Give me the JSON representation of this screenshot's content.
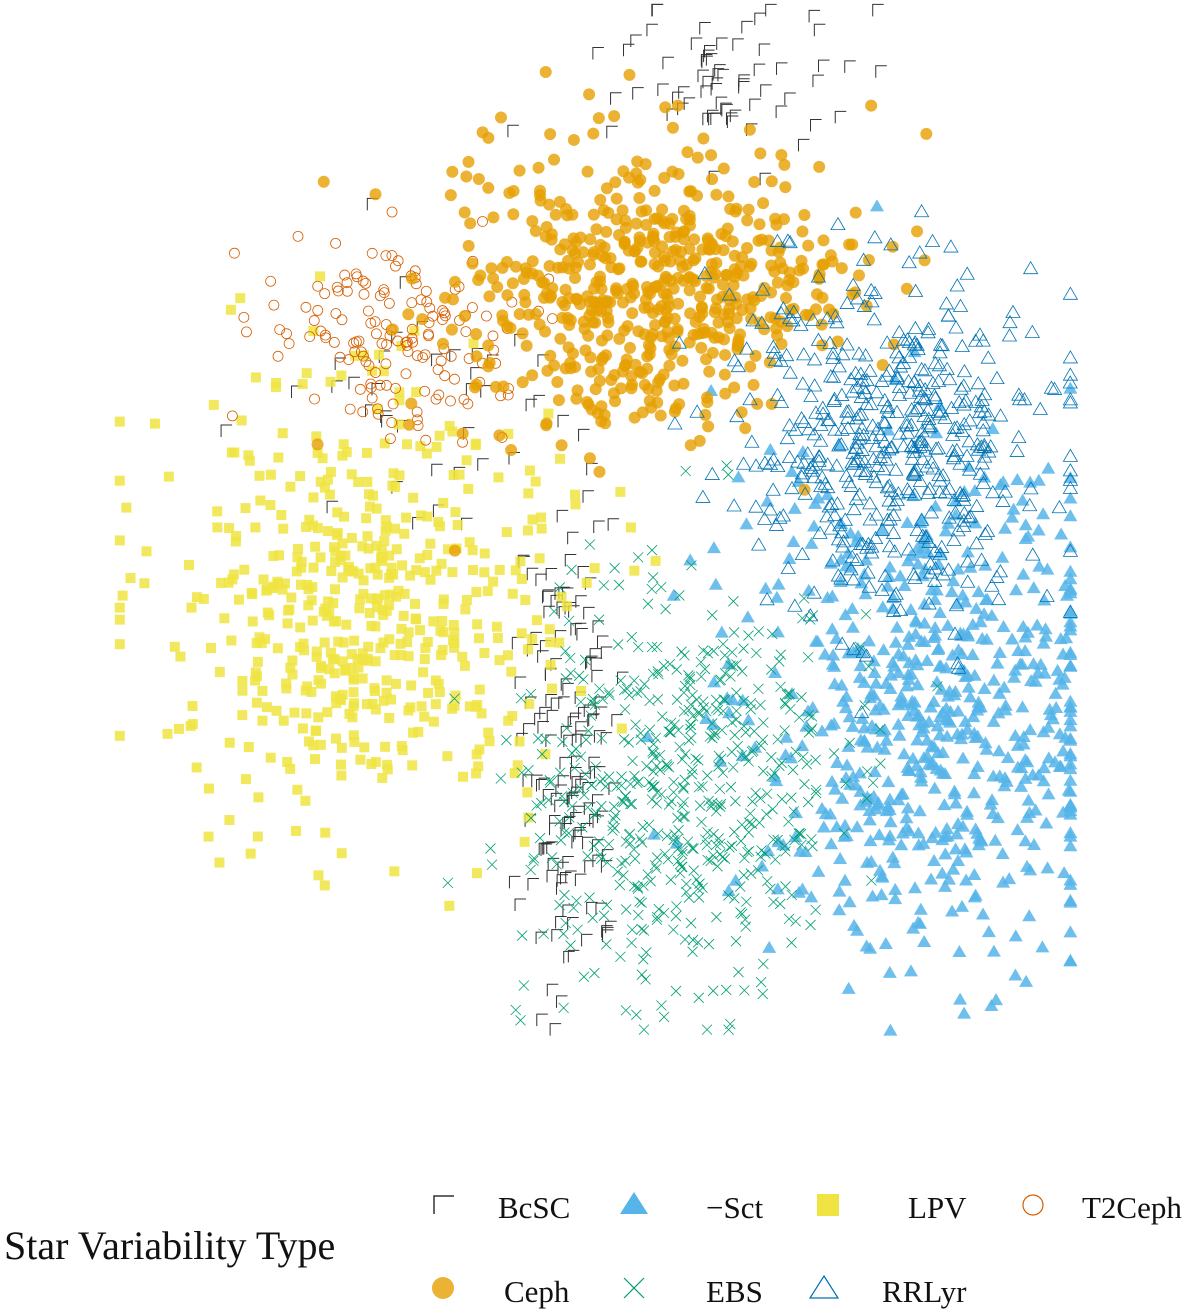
{
  "chart_data": {
    "type": "scatter",
    "title": "",
    "xlabel": "",
    "ylabel": "",
    "axes_visible": false,
    "grid": false,
    "legend": {
      "title": "Star Variability Type",
      "placement": "bottom"
    },
    "series": [
      {
        "name": "BcSC",
        "marker": "open-corner",
        "color": "#333333",
        "clusters": [
          {
            "cx": 0.47,
            "cy": 0.72,
            "sx": 0.025,
            "sy": 0.12,
            "n": 160
          },
          {
            "cx": 0.62,
            "cy": 0.08,
            "sx": 0.06,
            "sy": 0.04,
            "n": 70
          },
          {
            "cx": 0.35,
            "cy": 0.4,
            "sx": 0.08,
            "sy": 0.06,
            "n": 40
          }
        ]
      },
      {
        "name": "−Sct",
        "marker": "filled-triangle",
        "color": "#56B4E9",
        "clusters": [
          {
            "cx": 0.84,
            "cy": 0.68,
            "sx": 0.1,
            "sy": 0.12,
            "n": 650
          }
        ]
      },
      {
        "name": "LPV",
        "marker": "filled-square",
        "color": "#F0E442",
        "clusters": [
          {
            "cx": 0.26,
            "cy": 0.58,
            "sx": 0.1,
            "sy": 0.1,
            "n": 520
          }
        ]
      },
      {
        "name": "T2Ceph",
        "marker": "open-circle",
        "color": "#D55E00",
        "clusters": [
          {
            "cx": 0.28,
            "cy": 0.32,
            "sx": 0.06,
            "sy": 0.05,
            "n": 150
          }
        ]
      },
      {
        "name": "Ceph",
        "marker": "filled-circle",
        "color": "#E69F00",
        "clusters": [
          {
            "cx": 0.55,
            "cy": 0.28,
            "sx": 0.1,
            "sy": 0.07,
            "n": 600
          }
        ]
      },
      {
        "name": "EBS",
        "marker": "x",
        "color": "#009E73",
        "clusters": [
          {
            "cx": 0.58,
            "cy": 0.76,
            "sx": 0.08,
            "sy": 0.1,
            "n": 550
          }
        ]
      },
      {
        "name": "RRLyr",
        "marker": "open-triangle",
        "color": "#0072B2",
        "clusters": [
          {
            "cx": 0.8,
            "cy": 0.42,
            "sx": 0.08,
            "sy": 0.08,
            "n": 500
          }
        ]
      }
    ]
  }
}
